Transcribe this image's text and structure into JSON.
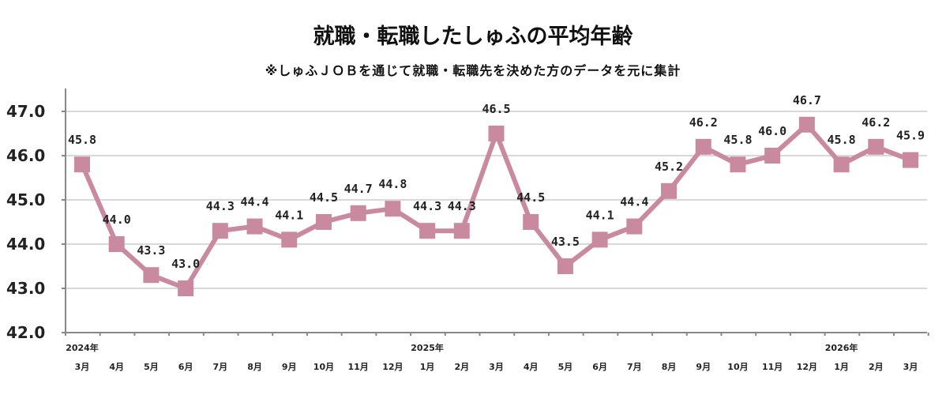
{
  "chart_data": {
    "type": "line",
    "title": "就職・転職したしゅふの平均年齢",
    "subtitle": "※しゅふＪＯＢを通じて就職・転職先を決めた方のデータを元に集計",
    "categories": [
      "3月",
      "4月",
      "5月",
      "6月",
      "7月",
      "8月",
      "9月",
      "10月",
      "11月",
      "12月",
      "1月",
      "2月",
      "3月",
      "4月",
      "5月",
      "6月",
      "7月",
      "8月",
      "9月",
      "10月",
      "11月",
      "12月",
      "1月",
      "2月",
      "3月"
    ],
    "year_labels": [
      {
        "index": 0,
        "label": "2024年"
      },
      {
        "index": 10,
        "label": "2025年"
      },
      {
        "index": 22,
        "label": "2026年"
      }
    ],
    "values": [
      45.8,
      44.0,
      43.3,
      43.0,
      44.3,
      44.4,
      44.1,
      44.5,
      44.7,
      44.8,
      44.3,
      44.3,
      46.5,
      44.5,
      43.5,
      44.1,
      44.4,
      45.2,
      46.2,
      45.8,
      46.0,
      46.7,
      45.8,
      46.2,
      45.9
    ],
    "data_labels": [
      "45.8",
      "44.0",
      "43.3",
      "43.0",
      "44.3",
      "44.4",
      "44.1",
      "44.5",
      "44.7",
      "44.8",
      "44.3",
      "44.3",
      "46.5",
      "44.5",
      "43.5",
      "44.1",
      "44.4",
      "45.2",
      "46.2",
      "45.8",
      "46.0",
      "46.7",
      "45.8",
      "46.2",
      "45.9"
    ],
    "ylim": [
      42.0,
      47.0
    ],
    "yticks": [
      "42.0",
      "43.0",
      "44.0",
      "45.0",
      "46.0",
      "47.0"
    ],
    "grid": true,
    "line_color": "#c98aa0",
    "marker": "square"
  }
}
